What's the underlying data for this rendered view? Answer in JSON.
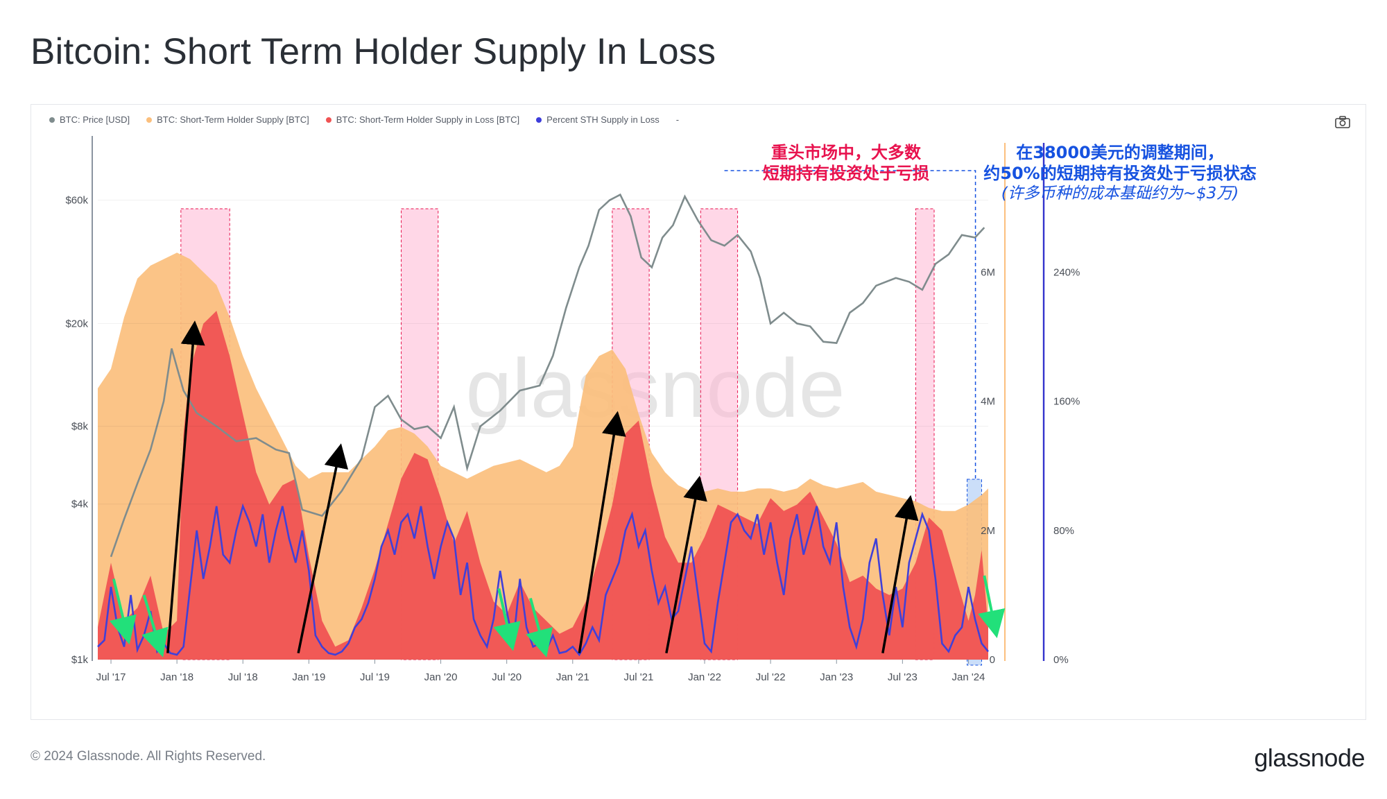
{
  "title": "Bitcoin: Short Term Holder Supply In Loss",
  "footer": {
    "copyright": "© 2024 Glassnode. All Rights Reserved.",
    "logo": "glassnode"
  },
  "watermark": "glassnode",
  "legend": [
    {
      "label": "BTC: Price [USD]",
      "color": "#7f8c8d"
    },
    {
      "label": "BTC: Short-Term Holder Supply [BTC]",
      "color": "#fbbf7d"
    },
    {
      "label": "BTC: Short-Term Holder Supply in Loss [BTC]",
      "color": "#f05353"
    },
    {
      "label": "Percent STH Supply in Loss",
      "color": "#3d3ddb"
    },
    {
      "label": "-",
      "color": ""
    }
  ],
  "annotations": {
    "red": {
      "line1": "重头市场中，大多数",
      "line2": "短期持有投资处于亏损"
    },
    "blue": {
      "line1": "在38000美元的调整期间，",
      "line2": "约50%的短期持有投资处于亏损状态",
      "line3": "(许多币种的成本基础约为~$3万)"
    }
  },
  "colors": {
    "price": "#7f8c8d",
    "supply": "#fbbf7d",
    "loss": "#f05353",
    "pct": "#4040d8",
    "highlight": "#ffb6d3",
    "highlight_blue": "#a9c8f5"
  },
  "chart_data": {
    "type": "area",
    "x_ticks": [
      "Jul '17",
      "Jan '18",
      "Jul '18",
      "Jan '19",
      "Jul '19",
      "Jan '20",
      "Jul '20",
      "Jan '21",
      "Jul '21",
      "Jan '22",
      "Jul '22",
      "Jan '23",
      "Jul '23",
      "Jan '24"
    ],
    "x_range": [
      2017.4,
      2024.15
    ],
    "price_axis": {
      "scale": "log",
      "ticks": [
        "$1k",
        "$4k",
        "$8k",
        "$20k",
        "$60k"
      ],
      "tick_values": [
        1000,
        4000,
        8000,
        20000,
        60000
      ],
      "range": [
        1000,
        100000
      ]
    },
    "supply_axis": {
      "ticks": [
        "0",
        "2M",
        "4M",
        "6M"
      ],
      "tick_values": [
        0,
        2000000,
        4000000,
        6000000
      ],
      "range": [
        0,
        8000000
      ]
    },
    "pct_axis": {
      "ticks": [
        "0%",
        "80%",
        "160%",
        "240%"
      ],
      "tick_values": [
        0,
        80,
        160,
        240
      ],
      "range": [
        0,
        320
      ]
    },
    "highlight_ranges": [
      [
        2018.03,
        2018.4
      ],
      [
        2019.7,
        2019.98
      ],
      [
        2021.3,
        2021.58
      ],
      [
        2021.97,
        2022.25
      ],
      [
        2023.6,
        2023.74
      ]
    ],
    "highlight_range_blue": [
      2023.99,
      2024.1
    ],
    "price": {
      "x": [
        2017.5,
        2017.6,
        2017.7,
        2017.8,
        2017.9,
        2017.96,
        2018.05,
        2018.15,
        2018.3,
        2018.45,
        2018.6,
        2018.75,
        2018.85,
        2018.95,
        2019.1,
        2019.25,
        2019.4,
        2019.5,
        2019.6,
        2019.7,
        2019.8,
        2019.9,
        2020.0,
        2020.1,
        2020.2,
        2020.3,
        2020.45,
        2020.6,
        2020.75,
        2020.85,
        2020.95,
        2021.05,
        2021.12,
        2021.2,
        2021.28,
        2021.36,
        2021.44,
        2021.52,
        2021.6,
        2021.68,
        2021.76,
        2021.85,
        2021.95,
        2022.05,
        2022.15,
        2022.25,
        2022.35,
        2022.42,
        2022.5,
        2022.6,
        2022.7,
        2022.8,
        2022.9,
        2023.0,
        2023.1,
        2023.2,
        2023.3,
        2023.45,
        2023.55,
        2023.65,
        2023.75,
        2023.85,
        2023.95,
        2024.05,
        2024.12
      ],
      "values": [
        2500,
        3500,
        4800,
        6500,
        10000,
        16000,
        11000,
        9000,
        8000,
        7000,
        7200,
        6500,
        6300,
        3800,
        3600,
        4500,
        6000,
        9500,
        10500,
        8500,
        7800,
        8000,
        7200,
        9500,
        5500,
        8000,
        9200,
        11000,
        11500,
        15000,
        23000,
        33000,
        40000,
        55000,
        60000,
        63000,
        52000,
        36000,
        33000,
        43000,
        48000,
        62000,
        50000,
        42000,
        40000,
        44000,
        38000,
        30000,
        20000,
        22000,
        20000,
        19500,
        17000,
        16800,
        22000,
        24000,
        28000,
        30000,
        29000,
        27000,
        34000,
        37000,
        44000,
        43000,
        47000
      ]
    },
    "supply": {
      "x": [
        2017.4,
        2017.5,
        2017.6,
        2017.7,
        2017.8,
        2017.9,
        2018.0,
        2018.1,
        2018.2,
        2018.3,
        2018.4,
        2018.5,
        2018.6,
        2018.7,
        2018.8,
        2018.9,
        2019.0,
        2019.1,
        2019.2,
        2019.3,
        2019.4,
        2019.5,
        2019.6,
        2019.7,
        2019.8,
        2019.9,
        2020.0,
        2020.1,
        2020.2,
        2020.3,
        2020.4,
        2020.5,
        2020.6,
        2020.7,
        2020.8,
        2020.9,
        2021.0,
        2021.1,
        2021.2,
        2021.3,
        2021.4,
        2021.5,
        2021.6,
        2021.7,
        2021.8,
        2021.9,
        2022.0,
        2022.1,
        2022.2,
        2022.3,
        2022.4,
        2022.5,
        2022.6,
        2022.7,
        2022.8,
        2022.9,
        2023.0,
        2023.1,
        2023.2,
        2023.3,
        2023.4,
        2023.5,
        2023.6,
        2023.7,
        2023.8,
        2023.9,
        2024.0,
        2024.1,
        2024.15
      ],
      "values": [
        4200000,
        4500000,
        5300000,
        5900000,
        6100000,
        6200000,
        6300000,
        6200000,
        6000000,
        5800000,
        5300000,
        4700000,
        4200000,
        3800000,
        3400000,
        3000000,
        2800000,
        2900000,
        2900000,
        2900000,
        3100000,
        3300000,
        3550000,
        3600000,
        3500000,
        3300000,
        3000000,
        2900000,
        2800000,
        2900000,
        3000000,
        3050000,
        3100000,
        3000000,
        2900000,
        3000000,
        3300000,
        4400000,
        4700000,
        4800000,
        4500000,
        3800000,
        3200000,
        2900000,
        2700000,
        2600000,
        2600000,
        2650000,
        2600000,
        2600000,
        2650000,
        2650000,
        2600000,
        2650000,
        2800000,
        2700000,
        2650000,
        2700000,
        2750000,
        2600000,
        2550000,
        2500000,
        2450000,
        2350000,
        2300000,
        2300000,
        2400000,
        2550000,
        2650000
      ]
    },
    "loss": {
      "x": [
        2017.4,
        2017.5,
        2017.6,
        2017.7,
        2017.8,
        2017.9,
        2018.0,
        2018.05,
        2018.1,
        2018.2,
        2018.3,
        2018.4,
        2018.5,
        2018.6,
        2018.7,
        2018.8,
        2018.9,
        2019.0,
        2019.1,
        2019.2,
        2019.3,
        2019.4,
        2019.5,
        2019.6,
        2019.7,
        2019.8,
        2019.9,
        2020.0,
        2020.1,
        2020.2,
        2020.3,
        2020.4,
        2020.5,
        2020.6,
        2020.7,
        2020.8,
        2020.9,
        2021.0,
        2021.1,
        2021.2,
        2021.3,
        2021.4,
        2021.5,
        2021.6,
        2021.7,
        2021.8,
        2021.9,
        2022.0,
        2022.1,
        2022.2,
        2022.3,
        2022.4,
        2022.5,
        2022.6,
        2022.7,
        2022.8,
        2022.9,
        2023.0,
        2023.1,
        2023.2,
        2023.3,
        2023.4,
        2023.5,
        2023.6,
        2023.7,
        2023.8,
        2023.9,
        2024.0,
        2024.05,
        2024.1,
        2024.15
      ],
      "values": [
        500000,
        1500000,
        600000,
        800000,
        1300000,
        400000,
        600000,
        3500000,
        4500000,
        5200000,
        5400000,
        4700000,
        3800000,
        2900000,
        2400000,
        2700000,
        2800000,
        1600000,
        600000,
        200000,
        300000,
        800000,
        1400000,
        2100000,
        2800000,
        3200000,
        3100000,
        2500000,
        1800000,
        2300000,
        1500000,
        900000,
        700000,
        1200000,
        800000,
        600000,
        400000,
        500000,
        900000,
        1600000,
        2400000,
        3500000,
        3700000,
        2700000,
        1900000,
        1500000,
        1500000,
        1900000,
        2400000,
        2300000,
        2200000,
        2100000,
        2500000,
        2300000,
        2400000,
        2600000,
        2200000,
        1800000,
        1200000,
        1300000,
        1100000,
        1000000,
        1100000,
        1500000,
        2200000,
        2000000,
        1300000,
        600000,
        1000000,
        1700000,
        500000
      ]
    },
    "pct_loss": {
      "x": [
        2017.4,
        2017.45,
        2017.5,
        2017.55,
        2017.6,
        2017.65,
        2017.7,
        2017.75,
        2017.8,
        2017.85,
        2017.9,
        2017.95,
        2018.0,
        2018.05,
        2018.1,
        2018.15,
        2018.2,
        2018.25,
        2018.3,
        2018.35,
        2018.4,
        2018.45,
        2018.5,
        2018.55,
        2018.6,
        2018.65,
        2018.7,
        2018.75,
        2018.8,
        2018.85,
        2018.9,
        2018.95,
        2019.0,
        2019.05,
        2019.1,
        2019.15,
        2019.2,
        2019.25,
        2019.3,
        2019.35,
        2019.4,
        2019.45,
        2019.5,
        2019.55,
        2019.6,
        2019.65,
        2019.7,
        2019.75,
        2019.8,
        2019.85,
        2019.9,
        2019.95,
        2020.0,
        2020.05,
        2020.1,
        2020.15,
        2020.2,
        2020.25,
        2020.3,
        2020.35,
        2020.4,
        2020.45,
        2020.5,
        2020.55,
        2020.6,
        2020.65,
        2020.7,
        2020.75,
        2020.8,
        2020.85,
        2020.9,
        2020.95,
        2021.0,
        2021.05,
        2021.1,
        2021.15,
        2021.2,
        2021.25,
        2021.3,
        2021.35,
        2021.4,
        2021.45,
        2021.5,
        2021.55,
        2021.6,
        2021.65,
        2021.7,
        2021.75,
        2021.8,
        2021.85,
        2021.9,
        2021.95,
        2022.0,
        2022.05,
        2022.1,
        2022.15,
        2022.2,
        2022.25,
        2022.3,
        2022.35,
        2022.4,
        2022.45,
        2022.5,
        2022.55,
        2022.6,
        2022.65,
        2022.7,
        2022.75,
        2022.8,
        2022.85,
        2022.9,
        2022.95,
        2023.0,
        2023.05,
        2023.1,
        2023.15,
        2023.2,
        2023.25,
        2023.3,
        2023.35,
        2023.4,
        2023.45,
        2023.5,
        2023.55,
        2023.6,
        2023.65,
        2023.7,
        2023.75,
        2023.8,
        2023.85,
        2023.9,
        2023.95,
        2024.0,
        2024.05,
        2024.1,
        2024.15
      ],
      "values": [
        8,
        12,
        45,
        20,
        8,
        40,
        6,
        15,
        30,
        5,
        10,
        4,
        3,
        8,
        45,
        80,
        50,
        70,
        95,
        65,
        60,
        80,
        95,
        85,
        70,
        90,
        60,
        80,
        95,
        75,
        60,
        80,
        55,
        15,
        8,
        4,
        3,
        5,
        10,
        20,
        25,
        35,
        50,
        70,
        80,
        65,
        85,
        90,
        75,
        95,
        70,
        50,
        70,
        85,
        75,
        40,
        60,
        25,
        15,
        8,
        25,
        55,
        30,
        10,
        50,
        20,
        8,
        10,
        6,
        15,
        4,
        5,
        8,
        3,
        10,
        20,
        12,
        40,
        50,
        60,
        80,
        90,
        70,
        80,
        55,
        35,
        45,
        25,
        30,
        50,
        70,
        40,
        10,
        5,
        35,
        60,
        85,
        90,
        80,
        75,
        90,
        65,
        85,
        60,
        40,
        75,
        90,
        65,
        80,
        95,
        70,
        60,
        85,
        45,
        20,
        8,
        25,
        60,
        75,
        40,
        15,
        45,
        20,
        60,
        75,
        90,
        80,
        50,
        10,
        5,
        15,
        20,
        45,
        25,
        10,
        5
      ]
    }
  }
}
